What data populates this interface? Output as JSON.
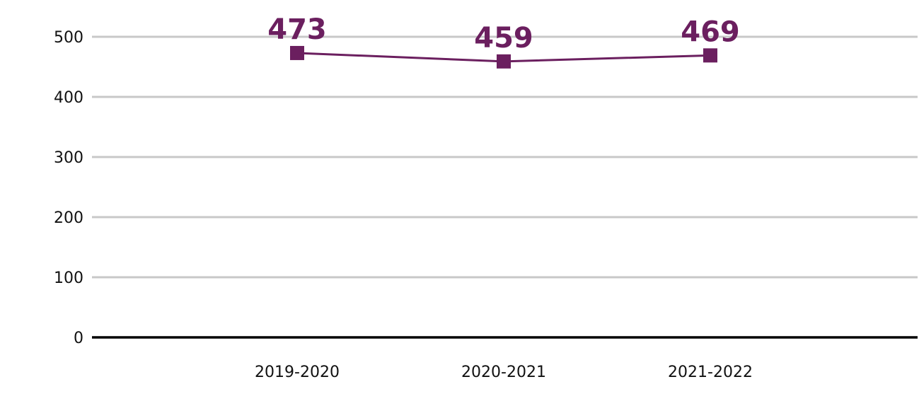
{
  "chart_data": {
    "type": "line",
    "title": "",
    "xlabel": "",
    "ylabel": "",
    "categories": [
      "2019-2020",
      "2020-2021",
      "2021-2022"
    ],
    "series": [
      {
        "values": [
          473,
          459,
          469
        ]
      }
    ],
    "data_labels": [
      "473",
      "459",
      "469"
    ],
    "y_ticks": [
      "0",
      "100",
      "200",
      "300",
      "400",
      "500"
    ],
    "ylim": [
      0,
      500
    ],
    "grid": true,
    "legend": "none",
    "marker": "square",
    "colors": {
      "series": "#6b1f5f",
      "grid": "#c8c8c8",
      "axis": "#000000"
    }
  }
}
